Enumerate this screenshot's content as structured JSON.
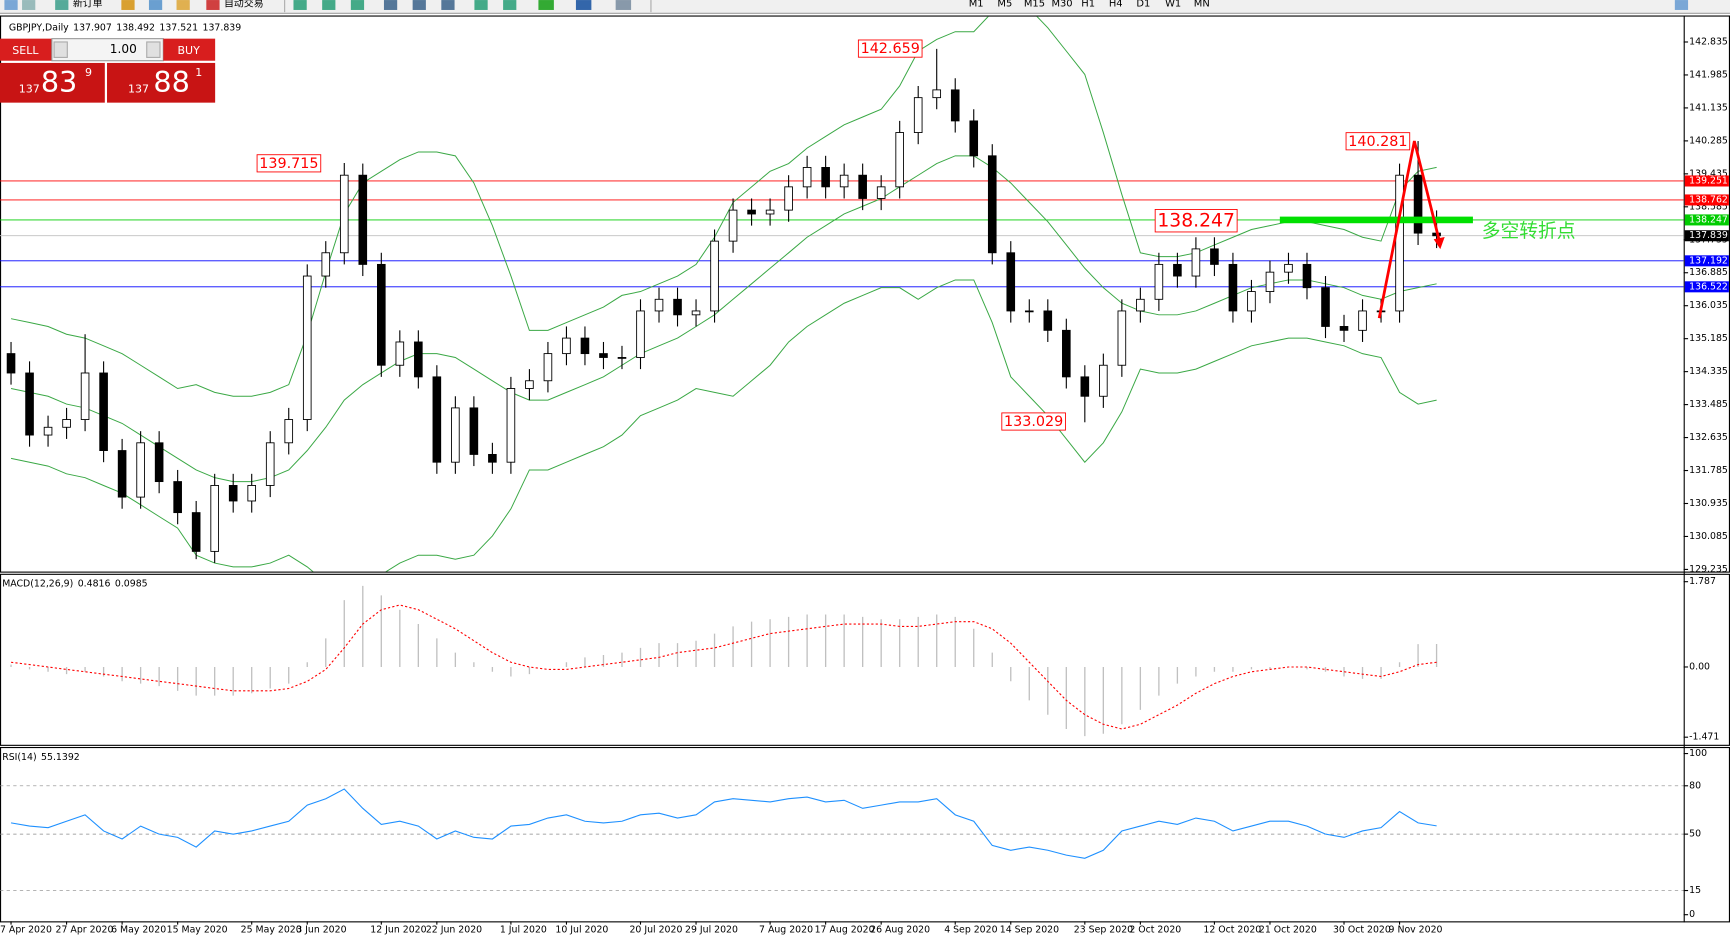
{
  "toolbar": {
    "buttons": [
      "新订单",
      "自动交易"
    ],
    "periods": [
      "M1",
      "M5",
      "M15",
      "M30",
      "H1",
      "H4",
      "D1",
      "W1",
      "MN"
    ]
  },
  "trade_panel": {
    "sell": "SELL",
    "buy": "BUY",
    "lot": "1.00",
    "sell_price": {
      "big_figure": "137",
      "pips": "83",
      "fraction": "9"
    },
    "buy_price": {
      "big_figure": "137",
      "pips": "88",
      "fraction": "1"
    }
  },
  "chart_data": {
    "type": "candlestick",
    "title": "GBPJPY,Daily",
    "categories": [
      "7 Apr 2020",
      null,
      null,
      "27 Apr 2020",
      null,
      null,
      "6 May 2020",
      null,
      null,
      "15 May 2020",
      null,
      null,
      null,
      "25 May 2020",
      null,
      null,
      "3 Jun 2020",
      null,
      null,
      null,
      "12 Jun 2020",
      null,
      null,
      "22 Jun 2020",
      null,
      null,
      null,
      "1 Jul 2020",
      null,
      null,
      "10 Jul 2020",
      null,
      null,
      null,
      "20 Jul 2020",
      null,
      null,
      "29 Jul 2020",
      null,
      null,
      null,
      "7 Aug 2020",
      null,
      null,
      "17 Aug 2020",
      null,
      null,
      "26 Aug 2020",
      null,
      null,
      null,
      "4 Sep 2020",
      null,
      null,
      "14 Sep 2020",
      null,
      null,
      null,
      "23 Sep 2020",
      null,
      null,
      "2 Oct 2020",
      null,
      null,
      null,
      "12 Oct 2020",
      null,
      null,
      "21 Oct 2020",
      null,
      null,
      null,
      "30 Oct 2020",
      null,
      null,
      "9 Nov 2020",
      null,
      null
    ],
    "candles": [
      [
        134.8,
        135.1,
        134.0,
        134.3
      ],
      [
        134.3,
        134.6,
        132.4,
        132.7
      ],
      [
        132.7,
        133.2,
        132.4,
        132.9
      ],
      [
        132.9,
        133.4,
        132.6,
        133.1
      ],
      [
        133.1,
        135.3,
        132.8,
        134.3
      ],
      [
        134.3,
        134.6,
        132.0,
        132.3
      ],
      [
        132.3,
        132.6,
        130.8,
        131.1
      ],
      [
        131.1,
        132.8,
        130.8,
        132.5
      ],
      [
        132.5,
        132.8,
        131.2,
        131.5
      ],
      [
        131.5,
        131.8,
        130.4,
        130.7
      ],
      [
        130.7,
        131.0,
        129.5,
        129.7
      ],
      [
        129.7,
        131.7,
        129.4,
        131.4
      ],
      [
        131.4,
        131.7,
        130.7,
        131.0
      ],
      [
        131.0,
        131.7,
        130.7,
        131.4
      ],
      [
        131.4,
        132.8,
        131.1,
        132.5
      ],
      [
        132.5,
        133.4,
        132.2,
        133.1
      ],
      [
        133.1,
        137.1,
        132.8,
        136.8
      ],
      [
        136.8,
        137.7,
        136.5,
        137.4
      ],
      [
        137.4,
        139.715,
        137.1,
        139.4
      ],
      [
        139.4,
        139.7,
        136.8,
        137.1
      ],
      [
        137.1,
        137.4,
        134.2,
        134.5
      ],
      [
        134.5,
        135.4,
        134.2,
        135.1
      ],
      [
        135.1,
        135.4,
        133.9,
        134.2
      ],
      [
        134.2,
        134.5,
        131.7,
        132.0
      ],
      [
        132.0,
        133.7,
        131.7,
        133.4
      ],
      [
        133.4,
        133.7,
        131.9,
        132.2
      ],
      [
        132.2,
        132.5,
        131.7,
        132.0
      ],
      [
        132.0,
        134.2,
        131.7,
        133.9
      ],
      [
        133.9,
        134.4,
        133.6,
        134.1
      ],
      [
        134.1,
        135.1,
        133.8,
        134.8
      ],
      [
        134.8,
        135.5,
        134.5,
        135.2
      ],
      [
        135.2,
        135.5,
        134.5,
        134.8
      ],
      [
        134.8,
        135.1,
        134.4,
        134.7
      ],
      [
        134.7,
        135.0,
        134.4,
        134.7
      ],
      [
        134.7,
        136.2,
        134.4,
        135.9
      ],
      [
        135.9,
        136.5,
        135.6,
        136.2
      ],
      [
        136.2,
        136.5,
        135.5,
        135.8
      ],
      [
        135.8,
        136.2,
        135.5,
        135.9
      ],
      [
        135.9,
        138.0,
        135.6,
        137.7
      ],
      [
        137.7,
        138.8,
        137.4,
        138.5
      ],
      [
        138.5,
        138.8,
        138.1,
        138.4
      ],
      [
        138.4,
        138.8,
        138.1,
        138.5
      ],
      [
        138.5,
        139.4,
        138.2,
        139.1
      ],
      [
        139.1,
        139.9,
        138.8,
        139.6
      ],
      [
        139.6,
        139.9,
        138.8,
        139.1
      ],
      [
        139.1,
        139.7,
        138.8,
        139.4
      ],
      [
        139.4,
        139.7,
        138.5,
        138.8
      ],
      [
        138.8,
        139.4,
        138.5,
        139.1
      ],
      [
        139.1,
        140.8,
        138.8,
        140.5
      ],
      [
        140.5,
        141.7,
        140.2,
        141.4
      ],
      [
        141.4,
        142.659,
        141.1,
        141.6
      ],
      [
        141.6,
        141.9,
        140.5,
        140.8
      ],
      [
        140.8,
        141.1,
        139.6,
        139.9
      ],
      [
        139.9,
        140.2,
        137.1,
        137.4
      ],
      [
        137.4,
        137.7,
        135.6,
        135.9
      ],
      [
        135.9,
        136.2,
        135.6,
        135.9
      ],
      [
        135.9,
        136.2,
        135.1,
        135.4
      ],
      [
        135.4,
        135.7,
        133.9,
        134.2
      ],
      [
        134.2,
        134.5,
        133.029,
        133.7
      ],
      [
        133.7,
        134.8,
        133.4,
        134.5
      ],
      [
        134.5,
        136.2,
        134.2,
        135.9
      ],
      [
        135.9,
        136.5,
        135.6,
        136.2
      ],
      [
        136.2,
        137.4,
        135.9,
        137.1
      ],
      [
        137.1,
        137.4,
        136.5,
        136.8
      ],
      [
        136.8,
        137.8,
        136.5,
        137.5
      ],
      [
        137.5,
        137.8,
        136.8,
        137.1
      ],
      [
        137.1,
        137.4,
        135.6,
        135.9
      ],
      [
        135.9,
        136.7,
        135.6,
        136.4
      ],
      [
        136.4,
        137.2,
        136.1,
        136.9
      ],
      [
        136.9,
        137.4,
        136.6,
        137.1
      ],
      [
        137.1,
        137.4,
        136.2,
        136.5
      ],
      [
        136.5,
        136.8,
        135.2,
        135.5
      ],
      [
        135.5,
        135.8,
        135.1,
        135.4
      ],
      [
        135.4,
        136.2,
        135.1,
        135.9
      ],
      [
        135.9,
        136.2,
        135.6,
        135.9
      ],
      [
        135.9,
        139.7,
        135.6,
        139.4
      ],
      [
        139.4,
        140.281,
        137.6,
        137.907
      ],
      [
        137.907,
        138.492,
        137.521,
        137.839
      ]
    ],
    "bull_color": "#ffffff",
    "bear_color": "#000000",
    "bands": {
      "color": "#3aa845",
      "upper": [
        135.7,
        135.6,
        135.5,
        135.3,
        135.2,
        135.0,
        134.8,
        134.5,
        134.2,
        133.9,
        134.0,
        133.8,
        133.7,
        133.7,
        133.8,
        134.0,
        135.3,
        136.9,
        138.4,
        139.2,
        139.5,
        139.8,
        140.0,
        140.0,
        139.9,
        139.2,
        138.1,
        136.8,
        135.4,
        135.4,
        135.6,
        135.8,
        136.0,
        136.3,
        136.4,
        136.6,
        136.8,
        137.1,
        137.8,
        138.7,
        139.1,
        139.5,
        139.7,
        140.1,
        140.4,
        140.7,
        140.9,
        141.1,
        141.7,
        142.6,
        142.9,
        143.1,
        143.1,
        143.6,
        144.2,
        143.7,
        143.2,
        142.6,
        142.0,
        140.5,
        138.9,
        137.4,
        137.3,
        137.3,
        137.4,
        137.6,
        137.8,
        138.0,
        138.1,
        138.2,
        138.2,
        138.1,
        138.0,
        137.8,
        137.7,
        139.0,
        139.5,
        139.6
      ],
      "middle": [
        133.9,
        133.8,
        133.7,
        133.5,
        133.4,
        133.2,
        133.0,
        132.7,
        132.4,
        132.1,
        131.8,
        131.6,
        131.5,
        131.5,
        131.6,
        131.8,
        132.3,
        132.9,
        133.6,
        134.0,
        134.3,
        134.6,
        134.8,
        134.8,
        134.7,
        134.4,
        134.1,
        133.8,
        133.6,
        133.6,
        133.8,
        134.0,
        134.2,
        134.5,
        134.8,
        135.0,
        135.2,
        135.5,
        135.8,
        136.2,
        136.6,
        137.0,
        137.4,
        137.8,
        138.1,
        138.4,
        138.6,
        138.8,
        139.1,
        139.4,
        139.7,
        139.9,
        139.9,
        139.6,
        139.2,
        138.7,
        138.2,
        137.6,
        137.0,
        136.5,
        136.1,
        135.9,
        135.8,
        135.8,
        135.9,
        136.1,
        136.3,
        136.5,
        136.6,
        136.7,
        136.7,
        136.6,
        136.5,
        136.3,
        136.2,
        136.4,
        136.5,
        136.6
      ],
      "lower": [
        132.1,
        132.0,
        131.9,
        131.7,
        131.6,
        131.4,
        131.2,
        130.9,
        130.6,
        130.3,
        129.6,
        129.4,
        129.3,
        129.3,
        129.4,
        129.6,
        129.3,
        128.9,
        128.8,
        128.8,
        129.1,
        129.4,
        129.6,
        129.6,
        129.5,
        129.6,
        130.1,
        130.8,
        131.8,
        131.8,
        132.0,
        132.2,
        132.4,
        132.7,
        133.2,
        133.4,
        133.6,
        133.9,
        133.8,
        133.7,
        134.1,
        134.5,
        135.1,
        135.5,
        135.8,
        136.1,
        136.3,
        136.5,
        136.5,
        136.2,
        136.5,
        136.7,
        136.7,
        135.6,
        134.2,
        133.7,
        133.2,
        132.6,
        132.0,
        132.5,
        133.3,
        134.4,
        134.3,
        134.3,
        134.4,
        134.6,
        134.8,
        135.0,
        135.1,
        135.2,
        135.2,
        135.1,
        135.0,
        134.8,
        134.7,
        133.8,
        133.5,
        133.6
      ]
    },
    "ylim": [
      129.18,
      143.49
    ],
    "yticks": [
      142.835,
      141.985,
      141.135,
      140.285,
      139.435,
      138.585,
      137.735,
      136.885,
      136.035,
      135.185,
      134.335,
      133.485,
      132.635,
      131.785,
      130.935,
      130.085,
      129.235
    ],
    "levels": [
      {
        "value": 139.251,
        "color": "#ff0000",
        "label_color": "#ff0000"
      },
      {
        "value": 138.762,
        "color": "#ff0000",
        "label_color": "#ff0000"
      },
      {
        "value": 138.247,
        "color": "#00cc00",
        "label_color": "#00cc00"
      },
      {
        "value": 137.839,
        "color": "#c0c0c0",
        "label_color": "#000000"
      },
      {
        "value": 137.192,
        "color": "#0000ff",
        "label_color": "#0000ff"
      },
      {
        "value": 136.522,
        "color": "#0000ff",
        "label_color": "#0000ff"
      }
    ],
    "annotation": "多空转折点",
    "macd": {
      "name": "MACD(12,26,9)",
      "ylim": [
        -1.63,
        1.93
      ],
      "yticks": [
        1.787,
        {
          "value": 0,
          "label": "0.00"
        },
        -1.471
      ],
      "series": [
        {
          "name": "MACD",
          "color": "#c0c0c0",
          "values": [
            0.05,
            -0.05,
            -0.1,
            -0.15,
            -0.1,
            -0.2,
            -0.3,
            -0.35,
            -0.4,
            -0.5,
            -0.6,
            -0.6,
            -0.6,
            -0.55,
            -0.45,
            -0.35,
            0.1,
            0.6,
            1.4,
            1.7,
            1.5,
            1.2,
            0.9,
            0.6,
            0.3,
            0.1,
            -0.1,
            -0.2,
            -0.15,
            0.0,
            0.1,
            0.2,
            0.25,
            0.3,
            0.4,
            0.5,
            0.5,
            0.55,
            0.7,
            0.85,
            0.95,
            1.0,
            1.05,
            1.1,
            1.1,
            1.1,
            1.05,
            1.0,
            1.0,
            1.05,
            1.1,
            1.05,
            0.8,
            0.3,
            -0.3,
            -0.7,
            -1.0,
            -1.3,
            -1.45,
            -1.4,
            -1.2,
            -0.9,
            -0.6,
            -0.35,
            -0.2,
            -0.1,
            -0.1,
            -0.05,
            -0.05,
            0.0,
            -0.05,
            -0.1,
            -0.2,
            -0.25,
            -0.25,
            0.1,
            0.48,
            0.4816
          ]
        },
        {
          "name": "Signal",
          "color": "#ff0000",
          "values": [
            0.1,
            0.05,
            0.0,
            -0.05,
            -0.1,
            -0.15,
            -0.2,
            -0.25,
            -0.3,
            -0.35,
            -0.4,
            -0.45,
            -0.5,
            -0.5,
            -0.5,
            -0.45,
            -0.3,
            -0.05,
            0.4,
            0.9,
            1.2,
            1.3,
            1.2,
            1.0,
            0.8,
            0.55,
            0.3,
            0.1,
            0.0,
            -0.05,
            -0.05,
            0.0,
            0.05,
            0.1,
            0.15,
            0.2,
            0.3,
            0.35,
            0.4,
            0.5,
            0.6,
            0.7,
            0.75,
            0.8,
            0.85,
            0.9,
            0.9,
            0.9,
            0.85,
            0.85,
            0.9,
            0.95,
            0.95,
            0.8,
            0.5,
            0.1,
            -0.3,
            -0.7,
            -1.0,
            -1.2,
            -1.3,
            -1.2,
            -1.0,
            -0.8,
            -0.55,
            -0.35,
            -0.2,
            -0.1,
            -0.05,
            0.0,
            0.0,
            -0.05,
            -0.1,
            -0.15,
            -0.2,
            -0.1,
            0.05,
            0.0985
          ]
        }
      ]
    },
    "rsi": {
      "name": "RSI(14)",
      "color": "#1e90ff",
      "ylim": [
        -4.1,
        103.4
      ],
      "yticks": [
        100,
        80,
        50,
        15,
        0
      ],
      "values": [
        57,
        55,
        54,
        58,
        62,
        52,
        47,
        55,
        50,
        48,
        42,
        52,
        50,
        52,
        55,
        58,
        68,
        72,
        78,
        66,
        56,
        58,
        55,
        47,
        52,
        48,
        47,
        55,
        56,
        60,
        62,
        58,
        57,
        58,
        62,
        63,
        60,
        62,
        70,
        72,
        71,
        70,
        72,
        73,
        70,
        71,
        66,
        68,
        70,
        70,
        72,
        62,
        58,
        43,
        40,
        42,
        40,
        37,
        35,
        40,
        52,
        55,
        58,
        56,
        60,
        58,
        52,
        55,
        58,
        58,
        55,
        50,
        48,
        52,
        54,
        64,
        57,
        55.1392
      ]
    }
  }
}
